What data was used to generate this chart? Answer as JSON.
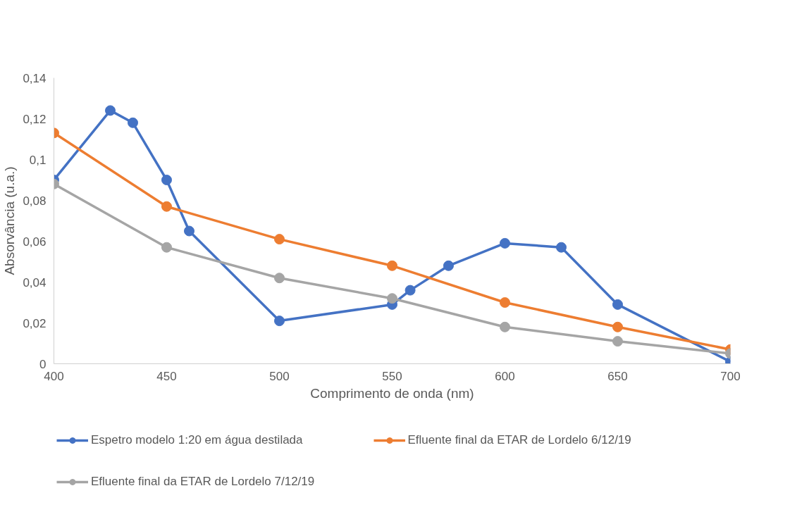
{
  "chart_data": {
    "type": "line",
    "xlabel": "Comprimento de onda (nm)",
    "ylabel": "Absorvância (u.a.)",
    "xlim": [
      400,
      700
    ],
    "xticks": [
      400,
      450,
      500,
      550,
      600,
      650,
      700
    ],
    "ylim": [
      0,
      0.14
    ],
    "yticks": [
      {
        "value": 0,
        "label": "0"
      },
      {
        "value": 0.02,
        "label": "0,02"
      },
      {
        "value": 0.04,
        "label": "0,04"
      },
      {
        "value": 0.06,
        "label": "0,06"
      },
      {
        "value": 0.08,
        "label": "0,08"
      },
      {
        "value": 0.1,
        "label": "0,1"
      },
      {
        "value": 0.12,
        "label": "0,12"
      },
      {
        "value": 0.14,
        "label": "0,14"
      }
    ],
    "grid": false,
    "legend": "bottom",
    "marker": "circle",
    "line_style": "solid",
    "series": [
      {
        "name": "Espetro modelo 1:20 em água destilada",
        "color": "#4472c4",
        "x": [
          400,
          425,
          435,
          450,
          460,
          500,
          550,
          558,
          575,
          600,
          625,
          650,
          700
        ],
        "values": [
          0.09,
          0.124,
          0.118,
          0.09,
          0.065,
          0.021,
          0.029,
          0.036,
          0.048,
          0.059,
          0.057,
          0.029,
          0.001
        ]
      },
      {
        "name": "Efluente final da ETAR de Lordelo 6/12/19",
        "color": "#ed7d31",
        "x": [
          400,
          450,
          500,
          550,
          600,
          650,
          700
        ],
        "values": [
          0.113,
          0.077,
          0.061,
          0.048,
          0.03,
          0.018,
          0.007
        ]
      },
      {
        "name": "Efluente final da ETAR de Lordelo 7/12/19",
        "color": "#a5a5a5",
        "x": [
          400,
          450,
          500,
          550,
          600,
          650,
          700
        ],
        "values": [
          0.088,
          0.057,
          0.042,
          0.032,
          0.018,
          0.011,
          0.005
        ]
      }
    ]
  }
}
